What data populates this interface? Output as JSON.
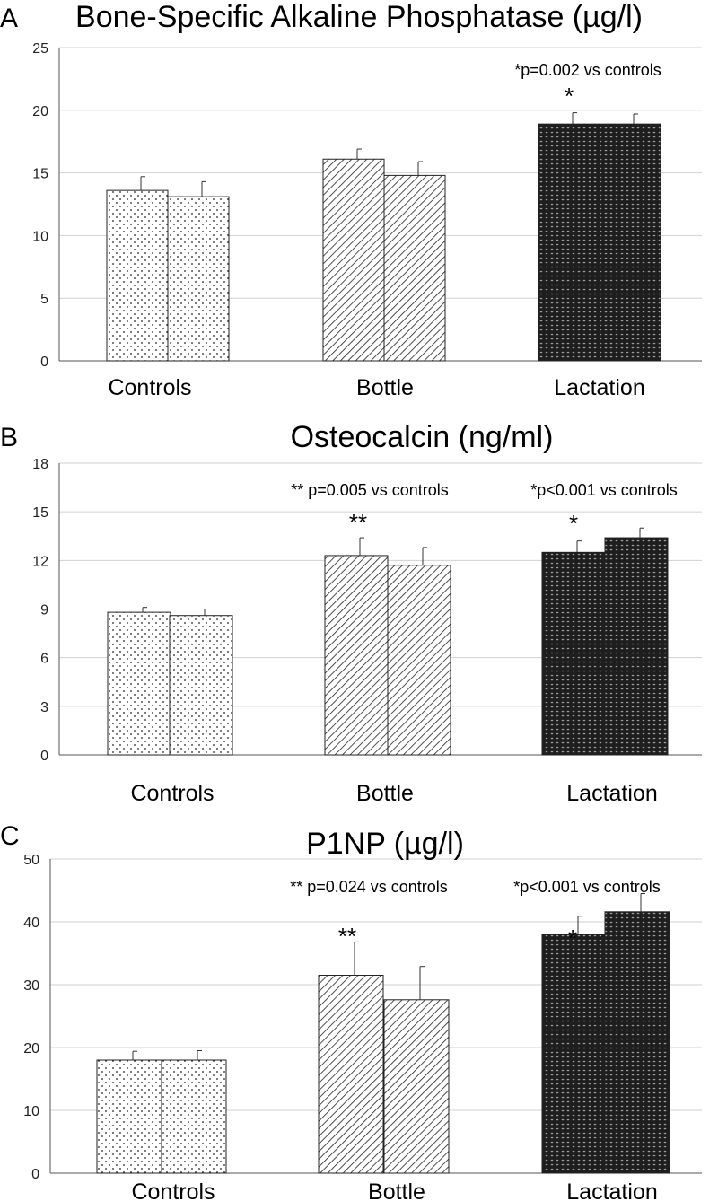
{
  "chart_data": [
    {
      "type": "bar",
      "panel_label": "A",
      "title": "Bone-Specific Alkaline Phosphatase (µg/l)",
      "categories": [
        "Controls",
        "Bottle",
        "Lactation"
      ],
      "series": [
        {
          "name": "bar 1",
          "values": [
            13.6,
            16.1,
            18.9
          ],
          "errors": [
            1.1,
            0.8,
            0.9
          ]
        },
        {
          "name": "bar 2",
          "values": [
            13.1,
            14.8,
            18.9
          ],
          "errors": [
            1.2,
            1.1,
            0.8
          ]
        }
      ],
      "ylim": [
        0,
        25
      ],
      "yticks": [
        "0",
        "5",
        "10",
        "15",
        "20",
        "25"
      ],
      "annotations": [
        {
          "category": "Lactation",
          "text": "*p=0.002 vs controls",
          "marker": "*"
        }
      ],
      "colors": {
        "controls": "#ffffff",
        "bottle": "#ffffff",
        "lactation": "#2a2a2a",
        "grid": "#d0d0d0"
      }
    },
    {
      "type": "bar",
      "panel_label": "B",
      "title": "Osteocalcin (ng/ml)",
      "categories": [
        "Controls",
        "Bottle",
        "Lactation"
      ],
      "series": [
        {
          "name": "bar 1",
          "values": [
            8.8,
            12.3,
            12.5
          ],
          "errors": [
            0.3,
            1.1,
            0.7
          ]
        },
        {
          "name": "bar 2",
          "values": [
            8.6,
            11.7,
            13.4
          ],
          "errors": [
            0.4,
            1.1,
            0.6
          ]
        }
      ],
      "ylim": [
        0,
        18
      ],
      "yticks": [
        "0",
        "3",
        "6",
        "9",
        "12",
        "15",
        "18"
      ],
      "annotations": [
        {
          "category": "Bottle",
          "text": "** p=0.005 vs controls",
          "marker": "**"
        },
        {
          "category": "Lactation",
          "text": "*p<0.001 vs controls",
          "marker": "*"
        }
      ]
    },
    {
      "type": "bar",
      "panel_label": "C",
      "title": "P1NP (µg/l)",
      "categories": [
        "Controls",
        "Bottle",
        "Lactation"
      ],
      "series": [
        {
          "name": "bar 1",
          "values": [
            18.0,
            31.5,
            38.0
          ],
          "errors": [
            1.4,
            5.3,
            2.9
          ]
        },
        {
          "name": "bar 2",
          "values": [
            18.0,
            27.6,
            41.6
          ],
          "errors": [
            1.5,
            5.3,
            2.9
          ]
        }
      ],
      "ylim": [
        0,
        50
      ],
      "yticks": [
        "0",
        "10",
        "20",
        "30",
        "40",
        "50"
      ],
      "annotations": [
        {
          "category": "Bottle",
          "text": "** p=0.024 vs controls",
          "marker": "**"
        },
        {
          "category": "Lactation",
          "text": "*p<0.001 vs controls",
          "marker": "*"
        }
      ]
    }
  ]
}
